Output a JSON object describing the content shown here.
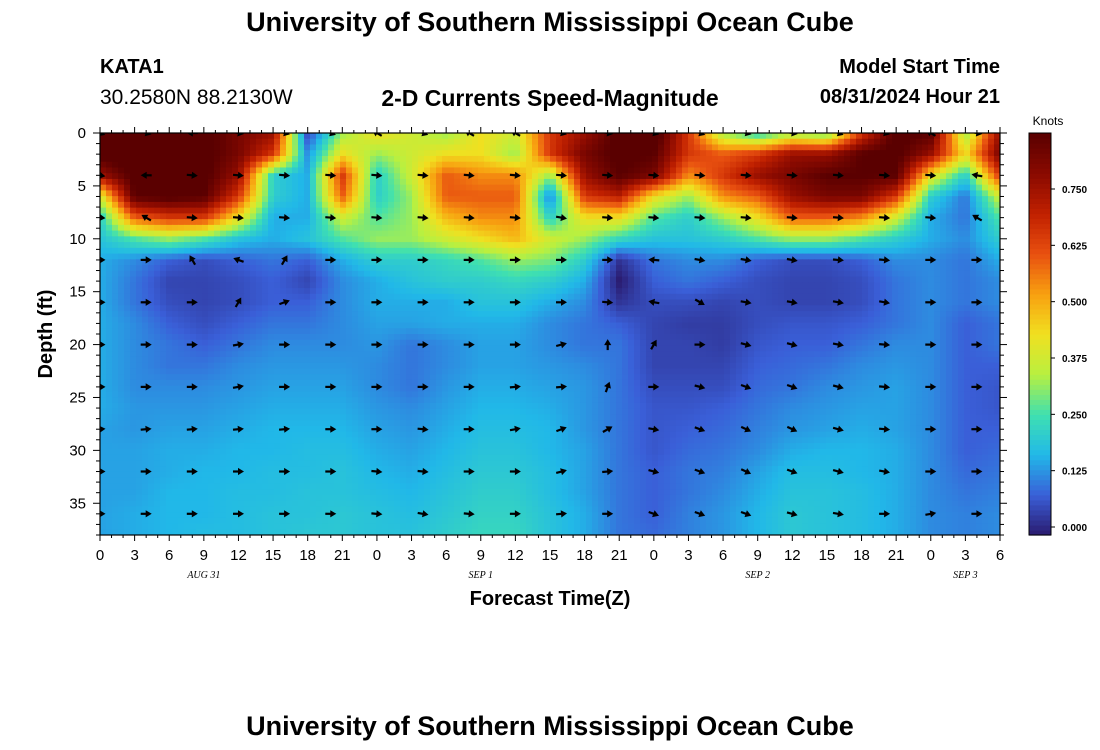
{
  "header": {
    "title": "University of Southern Mississippi Ocean Cube",
    "station": "KATA1",
    "coords": "30.2580N  88.2130W",
    "plot_title": "2-D Currents Speed-Magnitude",
    "model_start_label": "Model Start Time",
    "model_start_value": "08/31/2024 Hour 21"
  },
  "footer": {
    "title": "University of Southern Mississippi Ocean Cube"
  },
  "colorbar": {
    "unit": "Knots",
    "ticks": [
      "0.000",
      "0.125",
      "0.250",
      "0.375",
      "0.500",
      "0.625",
      "0.750"
    ],
    "colors": [
      "#2a1a6e",
      "#3a5fd8",
      "#21b8e8",
      "#3fe0b0",
      "#b8f040",
      "#f0e020",
      "#f8a010",
      "#e85010",
      "#c02000",
      "#8a0a00",
      "#5a0000"
    ]
  },
  "chart_data": {
    "type": "heatmap",
    "title": "2-D Currents Speed-Magnitude",
    "xlabel": "Forecast Time(Z)",
    "ylabel": "Depth (ft)",
    "x_tick_labels": [
      "0",
      "3",
      "6",
      "9",
      "12",
      "15",
      "18",
      "21",
      "0",
      "3",
      "6",
      "9",
      "12",
      "15",
      "18",
      "21",
      "0",
      "3",
      "6",
      "9",
      "12",
      "15",
      "18",
      "21",
      "0",
      "3",
      "6"
    ],
    "x_date_labels": [
      {
        "text": "AUG 31",
        "at_hour": 9
      },
      {
        "text": "SEP 1",
        "at_hour": 33
      },
      {
        "text": "SEP 2",
        "at_hour": 57
      },
      {
        "text": "SEP 3",
        "at_hour": 75
      }
    ],
    "x_range_hours": [
      0,
      78
    ],
    "y_tick_labels": [
      "0",
      "5",
      "10",
      "15",
      "20",
      "25",
      "30",
      "35"
    ],
    "y_range": [
      0,
      38
    ],
    "value_range": [
      0,
      0.8
    ],
    "x_hours": [
      0,
      3,
      6,
      9,
      12,
      15,
      18,
      21,
      24,
      27,
      30,
      33,
      36,
      39,
      42,
      45,
      48,
      51,
      54,
      57,
      60,
      63,
      66,
      69,
      72,
      75,
      78
    ],
    "depths": [
      0,
      2,
      4,
      6,
      8,
      10,
      12,
      14,
      16,
      18,
      20,
      22,
      24,
      26,
      28,
      30,
      32,
      34,
      36,
      38
    ],
    "speed": [
      [
        0.82,
        0.85,
        0.85,
        0.82,
        0.75,
        0.7,
        0.05,
        0.3,
        0.4,
        0.35,
        0.3,
        0.4,
        0.35,
        0.6,
        0.7,
        0.82,
        0.85,
        0.6,
        0.3,
        0.2,
        0.3,
        0.25,
        0.6,
        0.82,
        0.8,
        0.3,
        0.7
      ],
      [
        0.82,
        0.85,
        0.85,
        0.82,
        0.75,
        0.6,
        0.12,
        0.4,
        0.3,
        0.35,
        0.4,
        0.4,
        0.3,
        0.6,
        0.75,
        0.82,
        0.8,
        0.6,
        0.55,
        0.6,
        0.7,
        0.7,
        0.8,
        0.82,
        0.7,
        0.4,
        0.75
      ],
      [
        0.7,
        0.82,
        0.85,
        0.82,
        0.7,
        0.2,
        0.15,
        0.6,
        0.2,
        0.35,
        0.55,
        0.5,
        0.5,
        0.3,
        0.7,
        0.8,
        0.75,
        0.5,
        0.6,
        0.7,
        0.75,
        0.8,
        0.8,
        0.8,
        0.4,
        0.2,
        0.6
      ],
      [
        0.35,
        0.8,
        0.82,
        0.8,
        0.6,
        0.2,
        0.15,
        0.55,
        0.2,
        0.3,
        0.55,
        0.55,
        0.55,
        0.1,
        0.6,
        0.65,
        0.4,
        0.3,
        0.5,
        0.55,
        0.7,
        0.75,
        0.75,
        0.6,
        0.2,
        0.1,
        0.35
      ],
      [
        0.2,
        0.55,
        0.6,
        0.6,
        0.4,
        0.15,
        0.15,
        0.35,
        0.25,
        0.3,
        0.45,
        0.5,
        0.5,
        0.2,
        0.4,
        0.4,
        0.25,
        0.2,
        0.3,
        0.4,
        0.55,
        0.55,
        0.5,
        0.35,
        0.15,
        0.1,
        0.25
      ],
      [
        0.18,
        0.25,
        0.3,
        0.25,
        0.18,
        0.15,
        0.18,
        0.25,
        0.3,
        0.3,
        0.35,
        0.4,
        0.45,
        0.35,
        0.3,
        0.22,
        0.18,
        0.18,
        0.2,
        0.25,
        0.3,
        0.3,
        0.25,
        0.2,
        0.15,
        0.12,
        0.2
      ],
      [
        0.15,
        0.12,
        0.08,
        0.06,
        0.08,
        0.1,
        0.08,
        0.15,
        0.2,
        0.2,
        0.22,
        0.25,
        0.3,
        0.28,
        0.2,
        0.03,
        0.1,
        0.12,
        0.12,
        0.08,
        0.06,
        0.06,
        0.08,
        0.12,
        0.12,
        0.1,
        0.15
      ],
      [
        0.15,
        0.1,
        0.05,
        0.05,
        0.06,
        0.08,
        0.05,
        0.12,
        0.15,
        0.18,
        0.2,
        0.2,
        0.22,
        0.2,
        0.15,
        0.0,
        0.08,
        0.1,
        0.08,
        0.06,
        0.05,
        0.05,
        0.06,
        0.1,
        0.12,
        0.1,
        0.12
      ],
      [
        0.15,
        0.1,
        0.06,
        0.05,
        0.06,
        0.08,
        0.08,
        0.12,
        0.15,
        0.15,
        0.15,
        0.18,
        0.18,
        0.15,
        0.12,
        0.03,
        0.06,
        0.06,
        0.05,
        0.06,
        0.05,
        0.05,
        0.06,
        0.1,
        0.12,
        0.1,
        0.12
      ],
      [
        0.15,
        0.12,
        0.08,
        0.06,
        0.08,
        0.1,
        0.1,
        0.12,
        0.14,
        0.14,
        0.15,
        0.15,
        0.15,
        0.12,
        0.1,
        0.08,
        0.05,
        0.04,
        0.04,
        0.06,
        0.07,
        0.07,
        0.08,
        0.1,
        0.12,
        0.08,
        0.1
      ],
      [
        0.15,
        0.12,
        0.1,
        0.08,
        0.1,
        0.12,
        0.12,
        0.12,
        0.13,
        0.1,
        0.12,
        0.14,
        0.14,
        0.12,
        0.1,
        0.1,
        0.05,
        0.05,
        0.04,
        0.07,
        0.08,
        0.08,
        0.1,
        0.12,
        0.12,
        0.08,
        0.1
      ],
      [
        0.15,
        0.12,
        0.1,
        0.1,
        0.12,
        0.13,
        0.13,
        0.13,
        0.12,
        0.1,
        0.12,
        0.14,
        0.14,
        0.13,
        0.12,
        0.1,
        0.05,
        0.05,
        0.05,
        0.08,
        0.09,
        0.1,
        0.12,
        0.13,
        0.12,
        0.08,
        0.08
      ],
      [
        0.15,
        0.12,
        0.12,
        0.12,
        0.13,
        0.14,
        0.14,
        0.14,
        0.12,
        0.1,
        0.13,
        0.15,
        0.15,
        0.14,
        0.13,
        0.1,
        0.06,
        0.06,
        0.06,
        0.09,
        0.1,
        0.12,
        0.13,
        0.14,
        0.12,
        0.08,
        0.07
      ],
      [
        0.15,
        0.13,
        0.13,
        0.13,
        0.14,
        0.15,
        0.15,
        0.15,
        0.13,
        0.12,
        0.14,
        0.16,
        0.16,
        0.15,
        0.13,
        0.1,
        0.07,
        0.07,
        0.08,
        0.1,
        0.12,
        0.13,
        0.14,
        0.14,
        0.12,
        0.08,
        0.07
      ],
      [
        0.14,
        0.13,
        0.14,
        0.14,
        0.15,
        0.16,
        0.16,
        0.16,
        0.14,
        0.13,
        0.15,
        0.17,
        0.17,
        0.16,
        0.13,
        0.1,
        0.07,
        0.08,
        0.09,
        0.11,
        0.13,
        0.14,
        0.15,
        0.14,
        0.12,
        0.08,
        0.08
      ],
      [
        0.14,
        0.14,
        0.15,
        0.15,
        0.16,
        0.16,
        0.17,
        0.17,
        0.15,
        0.14,
        0.16,
        0.18,
        0.18,
        0.16,
        0.14,
        0.1,
        0.07,
        0.09,
        0.1,
        0.12,
        0.15,
        0.16,
        0.16,
        0.15,
        0.12,
        0.08,
        0.09
      ],
      [
        0.14,
        0.14,
        0.15,
        0.16,
        0.16,
        0.17,
        0.17,
        0.18,
        0.16,
        0.15,
        0.17,
        0.19,
        0.19,
        0.17,
        0.14,
        0.1,
        0.08,
        0.1,
        0.11,
        0.14,
        0.17,
        0.17,
        0.16,
        0.15,
        0.12,
        0.09,
        0.1
      ],
      [
        0.14,
        0.14,
        0.16,
        0.16,
        0.17,
        0.17,
        0.18,
        0.18,
        0.17,
        0.16,
        0.18,
        0.2,
        0.2,
        0.17,
        0.14,
        0.1,
        0.08,
        0.1,
        0.12,
        0.15,
        0.18,
        0.18,
        0.17,
        0.15,
        0.12,
        0.1,
        0.11
      ],
      [
        0.14,
        0.15,
        0.16,
        0.16,
        0.17,
        0.18,
        0.18,
        0.19,
        0.18,
        0.17,
        0.19,
        0.21,
        0.21,
        0.18,
        0.15,
        0.1,
        0.08,
        0.11,
        0.13,
        0.16,
        0.19,
        0.18,
        0.17,
        0.15,
        0.12,
        0.11,
        0.12
      ],
      [
        0.14,
        0.15,
        0.16,
        0.17,
        0.17,
        0.18,
        0.19,
        0.19,
        0.18,
        0.18,
        0.2,
        0.22,
        0.22,
        0.18,
        0.15,
        0.1,
        0.09,
        0.11,
        0.13,
        0.16,
        0.19,
        0.18,
        0.17,
        0.15,
        0.12,
        0.11,
        0.12
      ]
    ],
    "vectors": {
      "x_hours": [
        0,
        4,
        8,
        12,
        16,
        20,
        24,
        28,
        32,
        36,
        40,
        44,
        48,
        52,
        56,
        60,
        64,
        68,
        72,
        76
      ],
      "depths": [
        0,
        4,
        8,
        12,
        16,
        20,
        24,
        28,
        32,
        36
      ],
      "angle_deg": [
        [
          -20,
          -15,
          180,
          -10,
          -15,
          -20,
          150,
          -20,
          150,
          150,
          -15,
          -10,
          -15,
          -20,
          -15,
          -10,
          -20,
          -15,
          150,
          -10
        ],
        [
          -10,
          180,
          -5,
          -5,
          -5,
          -5,
          -5,
          -5,
          -5,
          -5,
          -5,
          -5,
          -5,
          -5,
          -5,
          -5,
          -5,
          -5,
          -5,
          170
        ],
        [
          -5,
          150,
          -5,
          -5,
          -5,
          -5,
          -5,
          -5,
          -5,
          -5,
          -10,
          -5,
          -5,
          -5,
          -5,
          -5,
          -5,
          -5,
          -5,
          150
        ],
        [
          0,
          0,
          120,
          160,
          60,
          0,
          0,
          0,
          0,
          0,
          0,
          0,
          175,
          -10,
          -10,
          -10,
          -5,
          -5,
          0,
          0
        ],
        [
          0,
          0,
          0,
          60,
          20,
          0,
          0,
          0,
          0,
          0,
          0,
          -5,
          170,
          -30,
          -10,
          -10,
          -10,
          -10,
          0,
          0
        ],
        [
          0,
          0,
          0,
          10,
          0,
          0,
          0,
          0,
          0,
          0,
          15,
          90,
          60,
          0,
          -15,
          -15,
          -10,
          -5,
          0,
          0
        ],
        [
          0,
          0,
          0,
          10,
          0,
          0,
          0,
          0,
          0,
          5,
          5,
          70,
          0,
          -15,
          -20,
          -20,
          -15,
          -5,
          0,
          0
        ],
        [
          5,
          5,
          5,
          5,
          5,
          0,
          0,
          -5,
          0,
          10,
          20,
          30,
          -10,
          -20,
          -25,
          -25,
          -15,
          -5,
          0,
          0
        ],
        [
          0,
          0,
          0,
          0,
          0,
          0,
          -5,
          -5,
          0,
          0,
          15,
          5,
          -15,
          -20,
          -25,
          -20,
          -15,
          -10,
          0,
          0
        ],
        [
          0,
          0,
          0,
          0,
          0,
          0,
          -5,
          -10,
          -5,
          0,
          5,
          0,
          -20,
          -20,
          -20,
          -15,
          -10,
          0,
          10,
          0
        ]
      ]
    }
  }
}
